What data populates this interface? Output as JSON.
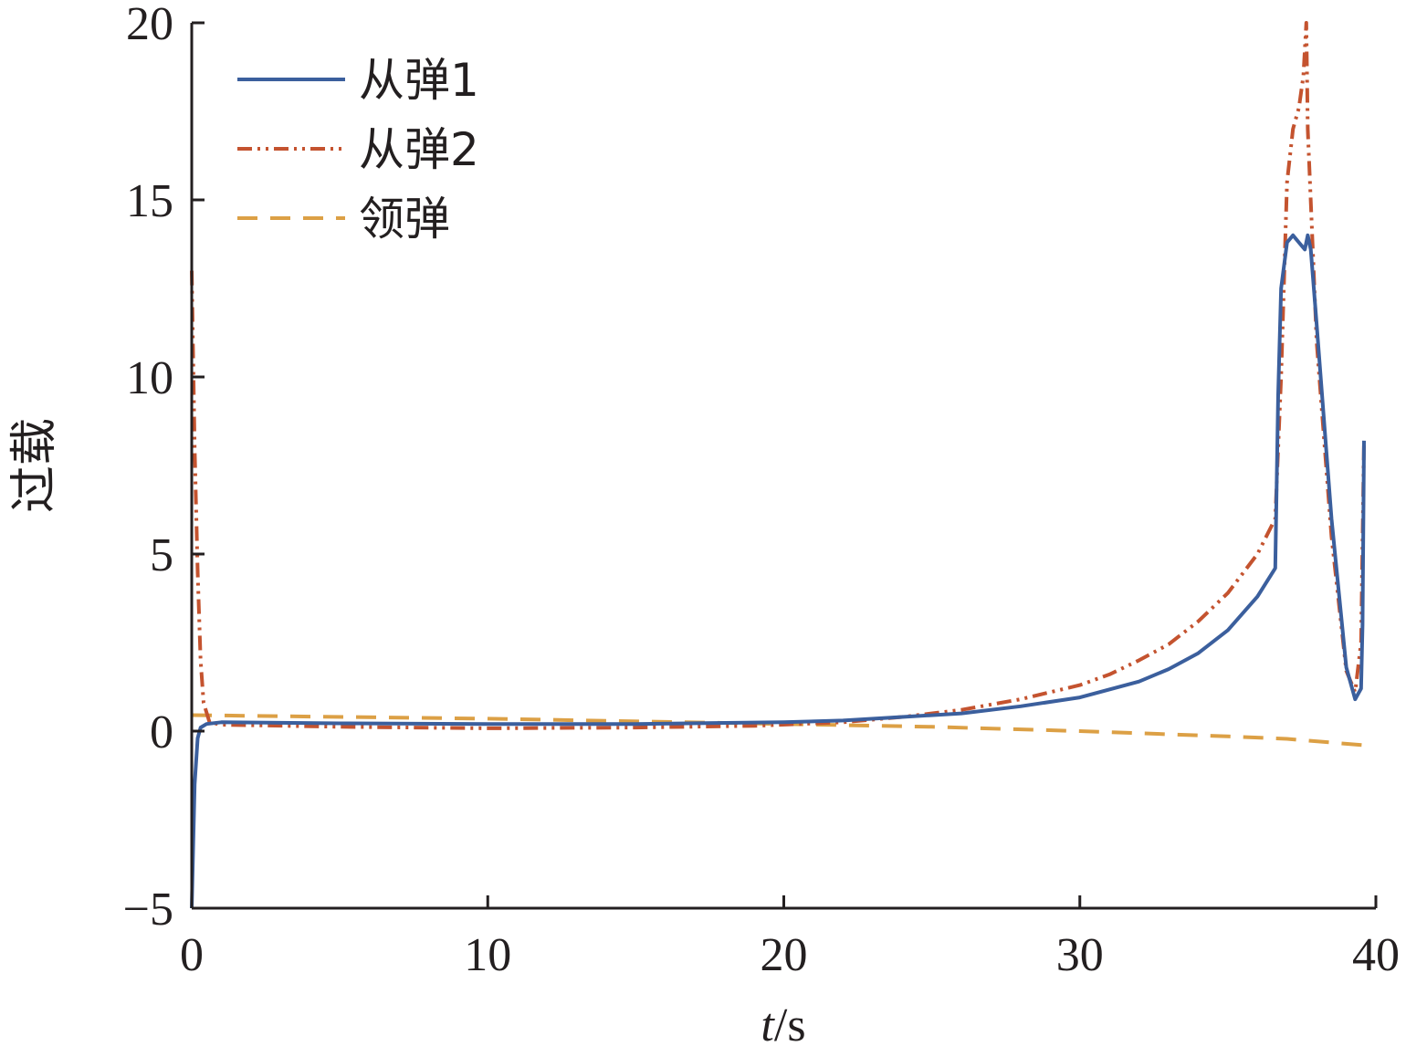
{
  "chart_data": {
    "type": "line",
    "xlabel_italic": "t",
    "xlabel_unit": "/s",
    "ylabel": "过载",
    "xlim": [
      0,
      40
    ],
    "ylim": [
      -5,
      20
    ],
    "xticks": [
      0,
      10,
      20,
      30,
      40
    ],
    "yticks": [
      -5,
      0,
      5,
      10,
      15,
      20
    ],
    "xtick_labels": [
      "0",
      "10",
      "20",
      "30",
      "40"
    ],
    "ytick_labels": [
      "−5",
      "0",
      "5",
      "10",
      "15",
      "20"
    ],
    "grid": false,
    "legend_position": "top-left",
    "series": [
      {
        "name": "从弹1",
        "color": "#3b5f9d",
        "dash": "solid",
        "points": [
          [
            0,
            -5
          ],
          [
            0.1,
            -1.5
          ],
          [
            0.2,
            -0.2
          ],
          [
            0.3,
            0.1
          ],
          [
            0.5,
            0.2
          ],
          [
            1,
            0.25
          ],
          [
            5,
            0.22
          ],
          [
            10,
            0.2
          ],
          [
            15,
            0.2
          ],
          [
            20,
            0.25
          ],
          [
            22,
            0.3
          ],
          [
            24,
            0.4
          ],
          [
            26,
            0.5
          ],
          [
            28,
            0.7
          ],
          [
            30,
            0.95
          ],
          [
            32,
            1.4
          ],
          [
            33,
            1.75
          ],
          [
            34,
            2.2
          ],
          [
            35,
            2.85
          ],
          [
            36,
            3.8
          ],
          [
            36.6,
            4.6
          ],
          [
            36.7,
            9.5
          ],
          [
            36.8,
            12.5
          ],
          [
            37,
            13.8
          ],
          [
            37.2,
            14.0
          ],
          [
            37.4,
            13.8
          ],
          [
            37.6,
            13.6
          ],
          [
            37.7,
            14.0
          ],
          [
            37.8,
            13.6
          ],
          [
            38,
            11.5
          ],
          [
            38.5,
            6.0
          ],
          [
            39,
            1.8
          ],
          [
            39.3,
            0.9
          ],
          [
            39.5,
            1.2
          ],
          [
            39.55,
            3.0
          ],
          [
            39.6,
            8.2
          ]
        ]
      },
      {
        "name": "从弹2",
        "color": "#c4532f",
        "dash": "dashdot",
        "points": [
          [
            0,
            13
          ],
          [
            0.1,
            8
          ],
          [
            0.2,
            4.5
          ],
          [
            0.3,
            2
          ],
          [
            0.4,
            0.8
          ],
          [
            0.6,
            0.25
          ],
          [
            1,
            0.18
          ],
          [
            5,
            0.12
          ],
          [
            10,
            0.08
          ],
          [
            15,
            0.1
          ],
          [
            19,
            0.15
          ],
          [
            22,
            0.25
          ],
          [
            24,
            0.4
          ],
          [
            26,
            0.6
          ],
          [
            28,
            0.9
          ],
          [
            30,
            1.3
          ],
          [
            31,
            1.6
          ],
          [
            32,
            2.0
          ],
          [
            33,
            2.45
          ],
          [
            34,
            3.1
          ],
          [
            35,
            3.9
          ],
          [
            36,
            5.0
          ],
          [
            36.6,
            6.0
          ],
          [
            36.8,
            10
          ],
          [
            37,
            15.5
          ],
          [
            37.2,
            17.0
          ],
          [
            37.4,
            17.6
          ],
          [
            37.55,
            18.5
          ],
          [
            37.65,
            20
          ],
          [
            37.7,
            17.0
          ],
          [
            38,
            11.0
          ],
          [
            38.5,
            5.5
          ],
          [
            39,
            1.7
          ],
          [
            39.3,
            1.1
          ],
          [
            39.5,
            2.5
          ],
          [
            39.6,
            8.2
          ]
        ]
      },
      {
        "name": "领弹",
        "color": "#dca045",
        "dash": "dashed",
        "points": [
          [
            0,
            0.45
          ],
          [
            10,
            0.35
          ],
          [
            20,
            0.2
          ],
          [
            25,
            0.12
          ],
          [
            30,
            0.0
          ],
          [
            35,
            -0.15
          ],
          [
            37,
            -0.22
          ],
          [
            39.6,
            -0.4
          ]
        ]
      }
    ]
  }
}
